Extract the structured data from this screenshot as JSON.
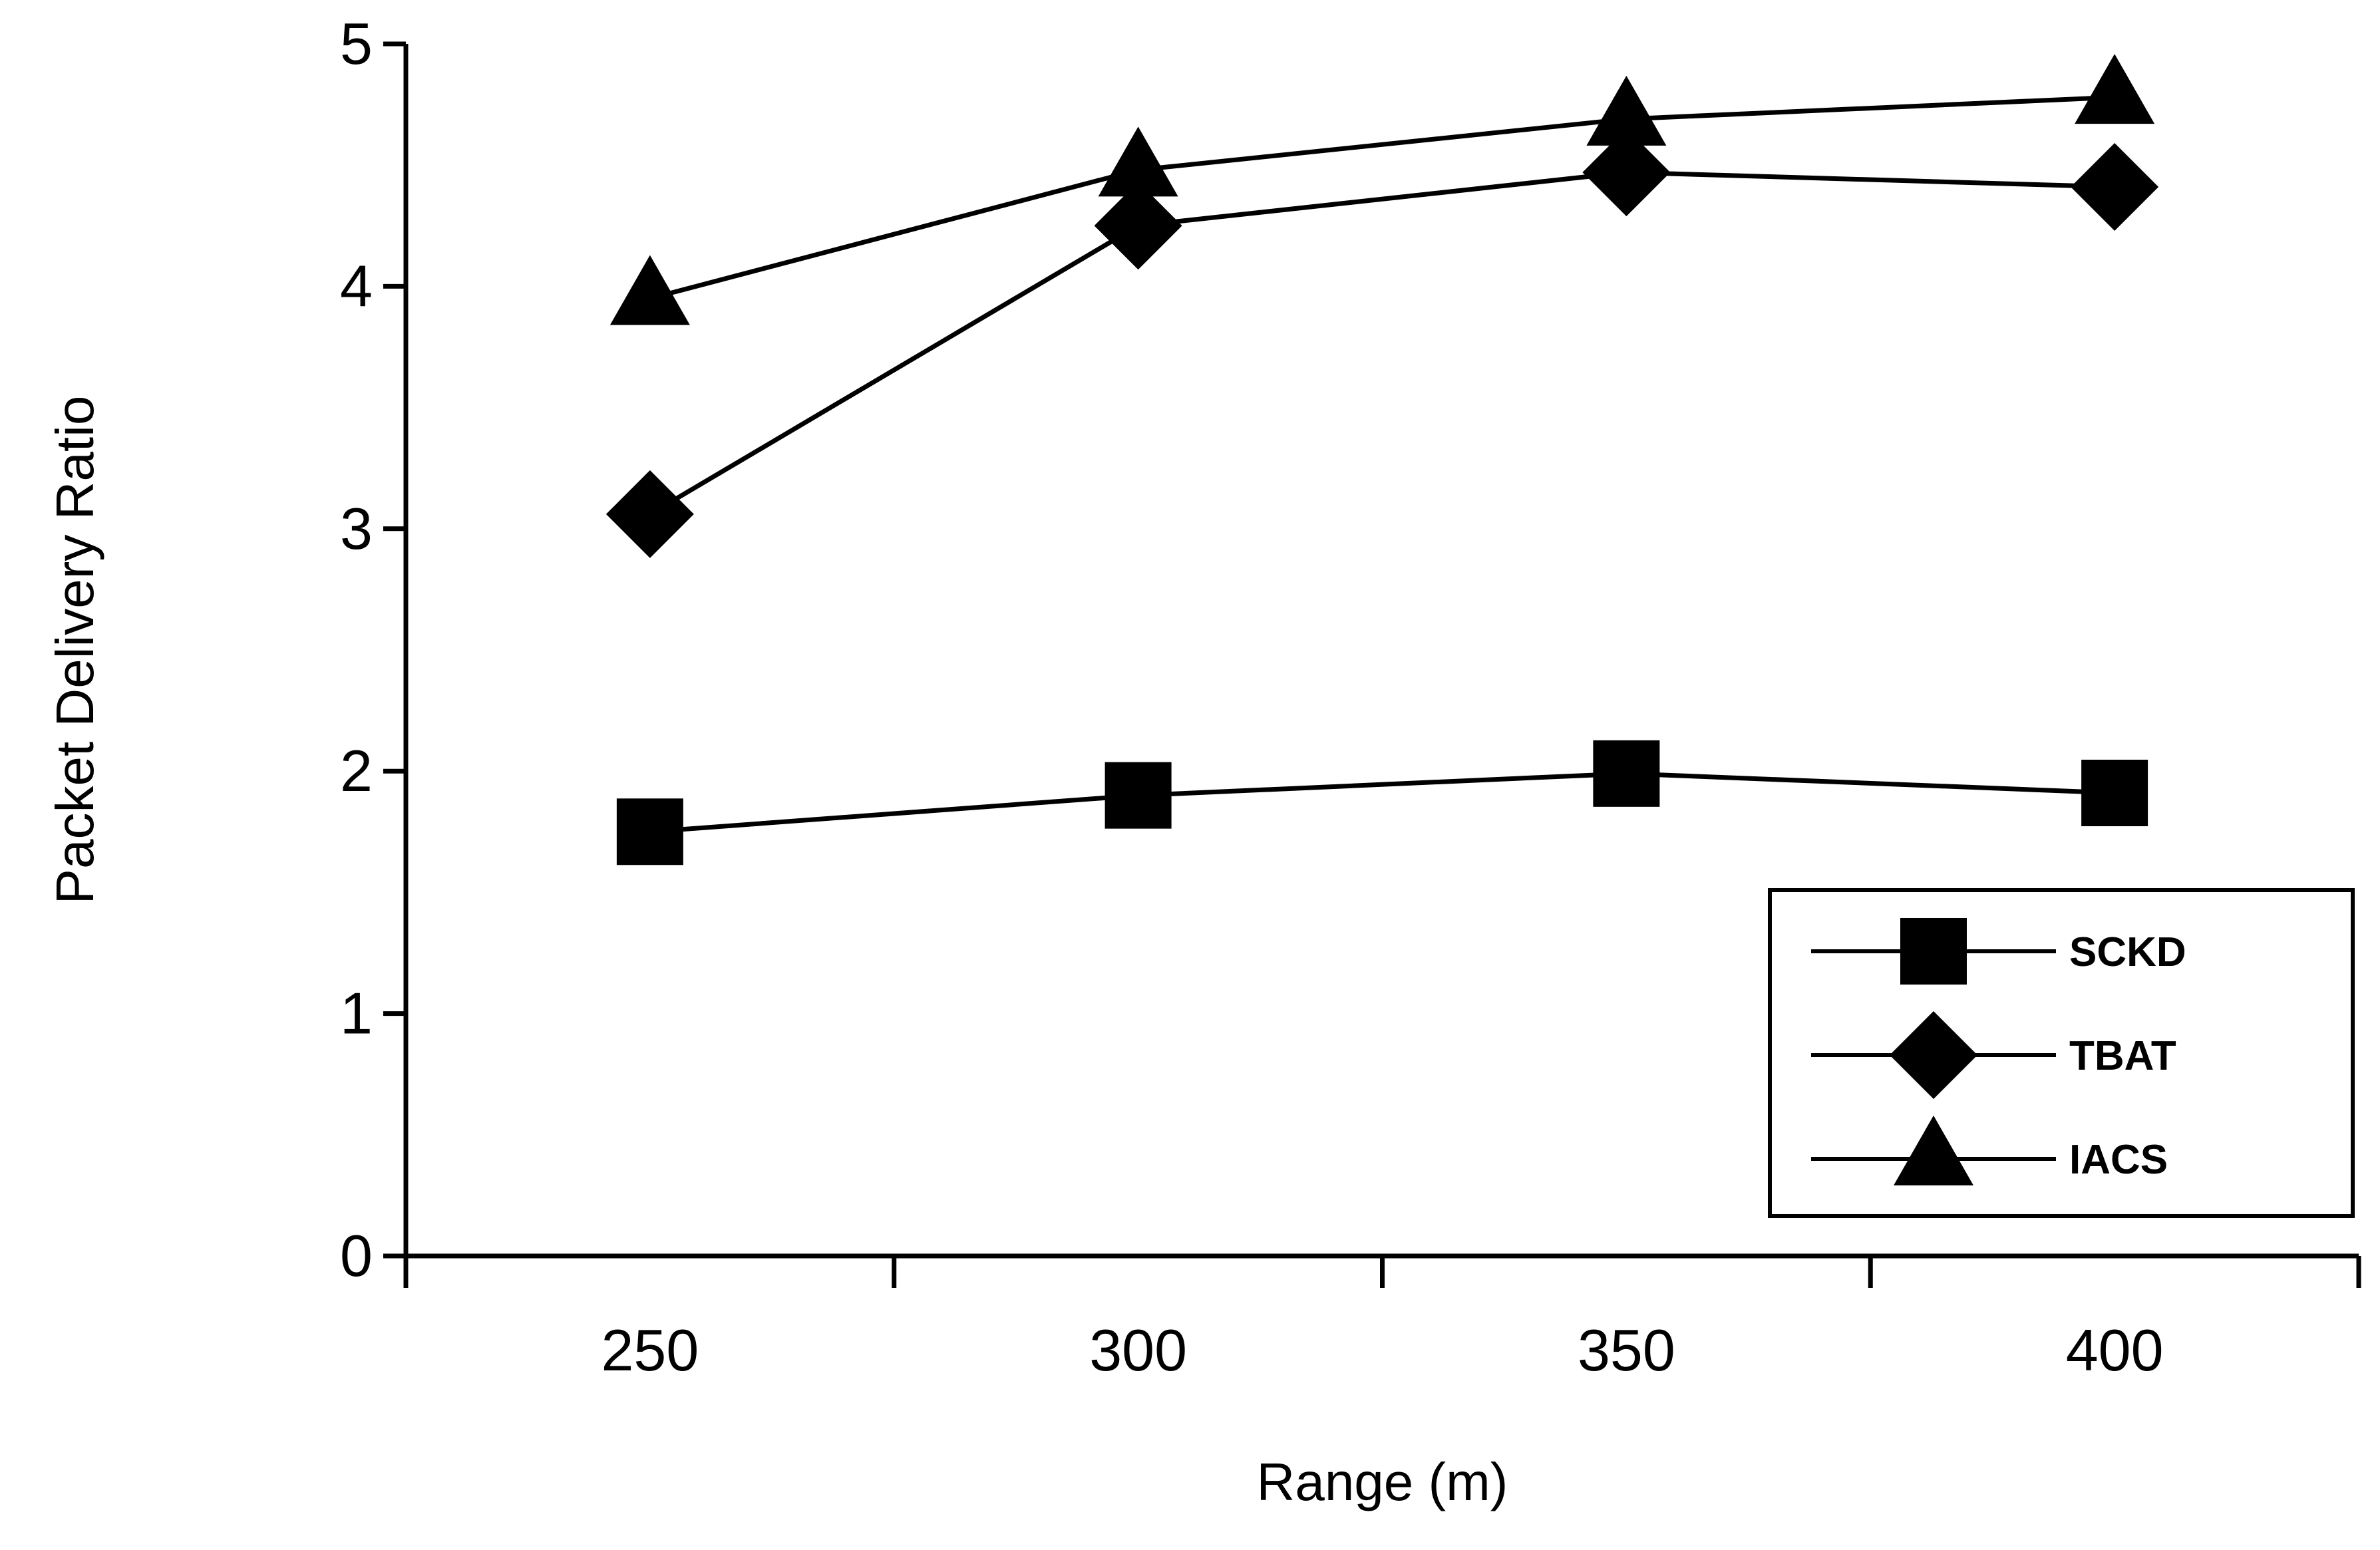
{
  "chart_data": {
    "type": "line",
    "title": "",
    "xlabel": "Range (m)",
    "ylabel": "Packet Delivery Ratio",
    "x": [
      250,
      300,
      350,
      400
    ],
    "x_tick_labels": [
      "250",
      "300",
      "350",
      "400"
    ],
    "y_tick_labels": [
      "0",
      "1",
      "2",
      "3",
      "4",
      "5"
    ],
    "ylim": [
      0,
      5
    ],
    "grid": false,
    "legend_position": "bottom-right",
    "series": [
      {
        "name": "SCKD",
        "marker": "square",
        "values": [
          1.75,
          1.9,
          1.99,
          1.91
        ]
      },
      {
        "name": "TBAT",
        "marker": "diamond",
        "values": [
          3.06,
          4.25,
          4.47,
          4.41
        ]
      },
      {
        "name": "IACS",
        "marker": "triangle",
        "values": [
          3.95,
          4.48,
          4.69,
          4.78
        ]
      }
    ],
    "colors": {
      "line": "#000000",
      "marker": "#000000"
    }
  }
}
